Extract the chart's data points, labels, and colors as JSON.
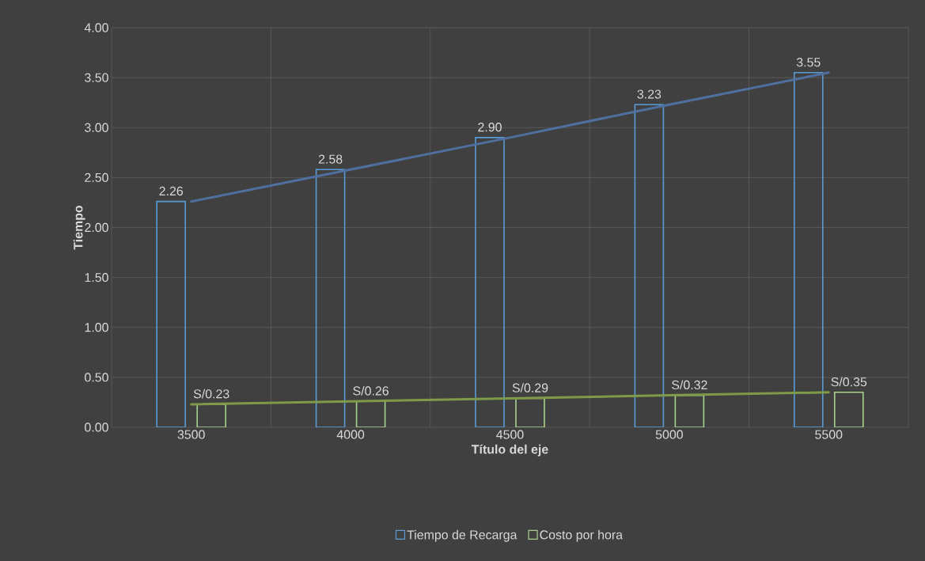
{
  "chart_data": {
    "type": "bar",
    "xlabel": "Título del eje",
    "ylabel": "Tiempo",
    "categories": [
      "3500",
      "4000",
      "4500",
      "5000",
      "5500"
    ],
    "series": [
      {
        "name": "Tiempo de Recarga",
        "color": "#5b9bd5",
        "values": [
          2.26,
          2.58,
          2.9,
          3.23,
          3.55
        ],
        "value_labels": [
          "2.26",
          "2.58",
          "2.90",
          "3.23",
          "3.55"
        ]
      },
      {
        "name": "Costo por hora",
        "color": "#a9d18e",
        "values": [
          0.23,
          0.26,
          0.29,
          0.32,
          0.35
        ],
        "value_labels": [
          "S/0.23",
          "S/0.26",
          "S/0.29",
          "S/0.32",
          "S/0.35"
        ]
      },
      {
        "type": "line",
        "color": "#4f6f9f",
        "values": [
          2.26,
          2.58,
          2.9,
          3.23,
          3.55
        ]
      },
      {
        "type": "line",
        "color": "#7f9a48",
        "values": [
          0.23,
          0.26,
          0.29,
          0.32,
          0.35
        ]
      }
    ],
    "ylim": [
      0,
      4
    ],
    "yticks": [
      {
        "value": 0,
        "label": "0.00"
      },
      {
        "value": 0.5,
        "label": "0.50"
      },
      {
        "value": 1,
        "label": "1.00"
      },
      {
        "value": 1.5,
        "label": "1.50"
      },
      {
        "value": 2,
        "label": "2.00"
      },
      {
        "value": 2.5,
        "label": "2.50"
      },
      {
        "value": 3,
        "label": "3.00"
      },
      {
        "value": 3.5,
        "label": "3.50"
      },
      {
        "value": 4,
        "label": "4.00"
      }
    ],
    "grid": true,
    "legend": "bottom"
  }
}
